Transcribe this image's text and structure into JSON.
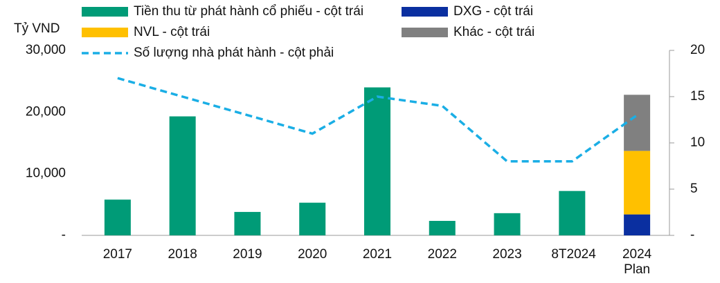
{
  "chart_data": {
    "type": "bar-line",
    "y_unit_label": "Tỷ VND",
    "categories": [
      "2017",
      "2018",
      "2019",
      "2020",
      "2021",
      "2022",
      "2023",
      "8T2024",
      "2024 Plan"
    ],
    "series": [
      {
        "name": "Tiền thu từ phát hành cổ phiếu - cột trái",
        "type": "bar",
        "color": "#009b77",
        "values": [
          5800,
          19300,
          3800,
          5300,
          24000,
          2350,
          3600,
          7200,
          null
        ]
      },
      {
        "name": "DXG - cột trái",
        "type": "bar",
        "color": "#0a2fa0",
        "values": [
          null,
          null,
          null,
          null,
          null,
          null,
          null,
          null,
          3400
        ]
      },
      {
        "name": "NVL - cột trái",
        "type": "bar",
        "color": "#ffc000",
        "values": [
          null,
          null,
          null,
          null,
          null,
          null,
          null,
          null,
          10300
        ]
      },
      {
        "name": "Khác - cột trái",
        "type": "bar",
        "color": "#808080",
        "values": [
          null,
          null,
          null,
          null,
          null,
          null,
          null,
          null,
          9100
        ]
      },
      {
        "name": "Số lượng nhà phát hành - cột phải",
        "type": "line",
        "axis": "y2",
        "color": "#1aaee5",
        "dashed": true,
        "values": [
          17,
          15,
          13,
          11,
          15,
          14,
          8,
          8,
          13
        ]
      }
    ],
    "ylim": [
      0,
      30000
    ],
    "yticks": [
      {
        "value": 0,
        "label": "-"
      },
      {
        "value": 10000,
        "label": "10,000"
      },
      {
        "value": 20000,
        "label": "20,000"
      },
      {
        "value": 30000,
        "label": "30,000"
      }
    ],
    "y2lim": [
      0,
      20
    ],
    "y2ticks": [
      {
        "value": 0,
        "label": "-"
      },
      5,
      10,
      15,
      20
    ],
    "stacked": true
  }
}
